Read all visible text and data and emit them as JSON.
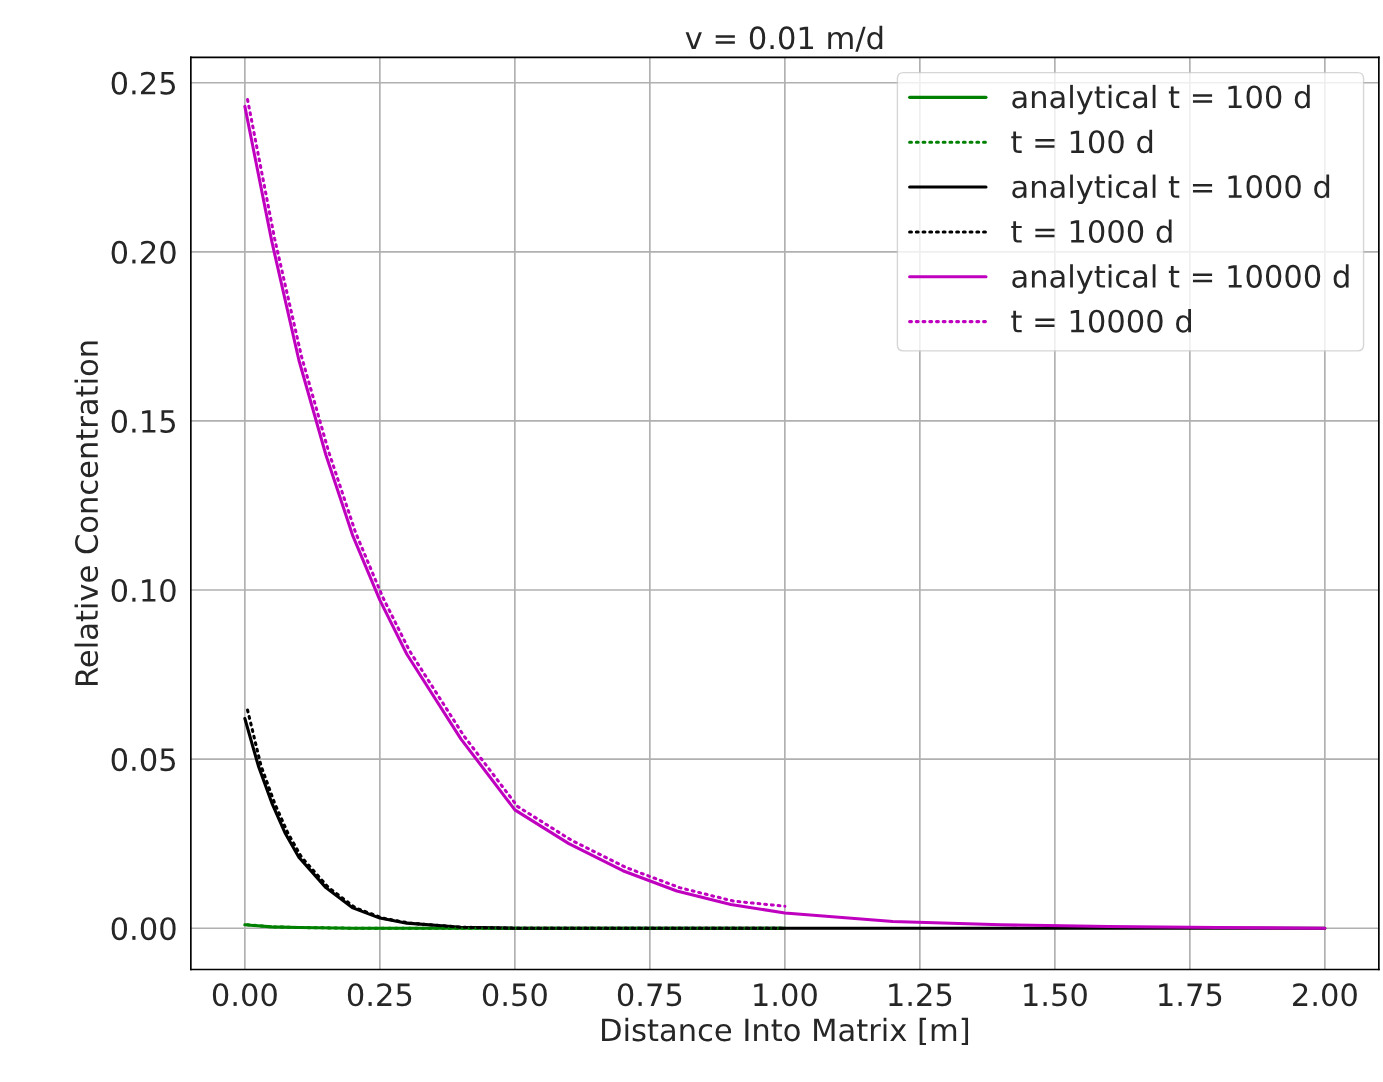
{
  "chart_data": {
    "type": "line",
    "title": "v = 0.01 m/d",
    "xlabel": "Distance Into Matrix [m]",
    "ylabel": "Relative Concentration",
    "xlim": [
      -0.1,
      2.1
    ],
    "ylim": [
      -0.0122,
      0.2575
    ],
    "xticks": [
      {
        "value": 0,
        "label": "0.00"
      },
      {
        "value": 0.25,
        "label": "0.25"
      },
      {
        "value": 0.5,
        "label": "0.50"
      },
      {
        "value": 0.75,
        "label": "0.75"
      },
      {
        "value": 1,
        "label": "1.00"
      },
      {
        "value": 1.25,
        "label": "1.25"
      },
      {
        "value": 1.5,
        "label": "1.50"
      },
      {
        "value": 1.75,
        "label": "1.75"
      },
      {
        "value": 2,
        "label": "2.00"
      }
    ],
    "yticks": [
      {
        "value": 0,
        "label": "0.00"
      },
      {
        "value": 0.05,
        "label": "0.05"
      },
      {
        "value": 0.1,
        "label": "0.10"
      },
      {
        "value": 0.15,
        "label": "0.15"
      },
      {
        "value": 0.2,
        "label": "0.20"
      },
      {
        "value": 0.25,
        "label": "0.25"
      }
    ],
    "grid": true,
    "legend": "top right",
    "series": [
      {
        "name": "analytical t = 100 d",
        "color": "#008000",
        "line_style": "solid",
        "x": [
          0,
          0.05,
          0.1,
          0.2,
          0.5,
          1.0
        ],
        "values": [
          0.001,
          0.0004,
          0.0002,
          0.0,
          0.0,
          0.0
        ]
      },
      {
        "name": "t = 100 d",
        "color": "#008000",
        "line_style": "dotted",
        "x": [
          0.005,
          0.05,
          0.1,
          0.2,
          0.5,
          1.0
        ],
        "values": [
          0.001,
          0.0004,
          0.0002,
          0.0,
          0.0,
          0.0
        ]
      },
      {
        "name": "analytical t = 1000 d",
        "color": "#000000",
        "line_style": "solid",
        "x": [
          0,
          0.025,
          0.05,
          0.075,
          0.1,
          0.15,
          0.2,
          0.25,
          0.3,
          0.4,
          0.5,
          1.0,
          1.5,
          2.0
        ],
        "values": [
          0.062,
          0.048,
          0.037,
          0.028,
          0.021,
          0.012,
          0.006,
          0.003,
          0.0015,
          0.0003,
          0.0,
          0.0,
          0.0,
          0.0
        ]
      },
      {
        "name": "t = 1000 d",
        "color": "#000000",
        "line_style": "dotted",
        "x": [
          0.005,
          0.03,
          0.055,
          0.08,
          0.105,
          0.155,
          0.205,
          0.255,
          0.305,
          0.4,
          0.5,
          1.0
        ],
        "values": [
          0.0645,
          0.048,
          0.037,
          0.028,
          0.021,
          0.012,
          0.006,
          0.003,
          0.0015,
          0.0003,
          0.0,
          0.0
        ]
      },
      {
        "name": "analytical t = 10000 d",
        "color": "#bf00bf",
        "line_style": "solid",
        "x": [
          0,
          0.05,
          0.1,
          0.15,
          0.2,
          0.25,
          0.3,
          0.4,
          0.5,
          0.6,
          0.7,
          0.8,
          0.9,
          1.0,
          1.2,
          1.4,
          1.6,
          1.8,
          2.0
        ],
        "values": [
          0.243,
          0.203,
          0.168,
          0.14,
          0.116,
          0.097,
          0.081,
          0.056,
          0.035,
          0.025,
          0.017,
          0.011,
          0.007,
          0.0045,
          0.002,
          0.001,
          0.0005,
          0.0002,
          0.0
        ]
      },
      {
        "name": "t = 10000 d",
        "color": "#bf00bf",
        "line_style": "dotted",
        "x": [
          0.005,
          0.055,
          0.105,
          0.155,
          0.205,
          0.255,
          0.305,
          0.405,
          0.505,
          0.605,
          0.705,
          0.805,
          0.905,
          1.0
        ],
        "values": [
          0.245,
          0.204,
          0.169,
          0.141,
          0.117,
          0.098,
          0.082,
          0.057,
          0.036,
          0.026,
          0.018,
          0.012,
          0.008,
          0.0065
        ]
      }
    ]
  }
}
